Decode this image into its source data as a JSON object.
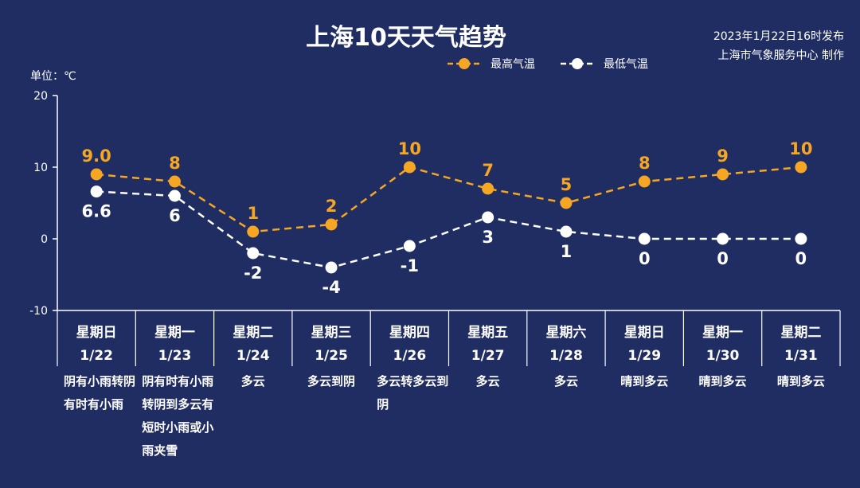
{
  "title": "上海10天天气趋势",
  "publish_line": "2023年1月22日16时发布",
  "producer_line": "上海市气象服务中心 制作",
  "unit_label": "单位：℃",
  "colors": {
    "background": "#1f2d63",
    "high": "#f5a623",
    "low": "#ffffff",
    "axis": "#ffffff"
  },
  "chart_data": {
    "type": "line",
    "title": "上海10天天气趋势",
    "ylabel": "单位：℃",
    "ylim": [
      -10,
      20
    ],
    "yticks": [
      "20",
      "10",
      "0",
      "-10"
    ],
    "legend": "top",
    "categories": [
      "1/22",
      "1/23",
      "1/24",
      "1/25",
      "1/26",
      "1/27",
      "1/28",
      "1/29",
      "1/30",
      "1/31"
    ],
    "weekdays": [
      "星期日",
      "星期一",
      "星期二",
      "星期三",
      "星期四",
      "星期五",
      "星期六",
      "星期日",
      "星期一",
      "星期二"
    ],
    "conditions": [
      "阴有小雨转阴有时有小雨",
      "阴有时有小雨转阴到多云有短时小雨或小雨夹雪",
      "多云",
      "多云到阴",
      "多云转多云到阴",
      "多云",
      "多云",
      "晴到多云",
      "晴到多云",
      "晴到多云"
    ],
    "series": [
      {
        "name": "最高气温",
        "values": [
          9,
          8,
          1,
          2,
          10,
          7,
          5,
          8,
          9,
          10
        ],
        "labels": [
          "9.0",
          "8",
          "1",
          "2",
          "10",
          "7",
          "5",
          "8",
          "9",
          "10"
        ]
      },
      {
        "name": "最低气温",
        "values": [
          6.6,
          6,
          -2,
          -4,
          -1,
          3,
          1,
          0,
          0,
          0
        ],
        "labels": [
          "6.6",
          "6",
          "-2",
          "-4",
          "-1",
          "3",
          "1",
          "0",
          "0",
          "0"
        ]
      }
    ]
  }
}
